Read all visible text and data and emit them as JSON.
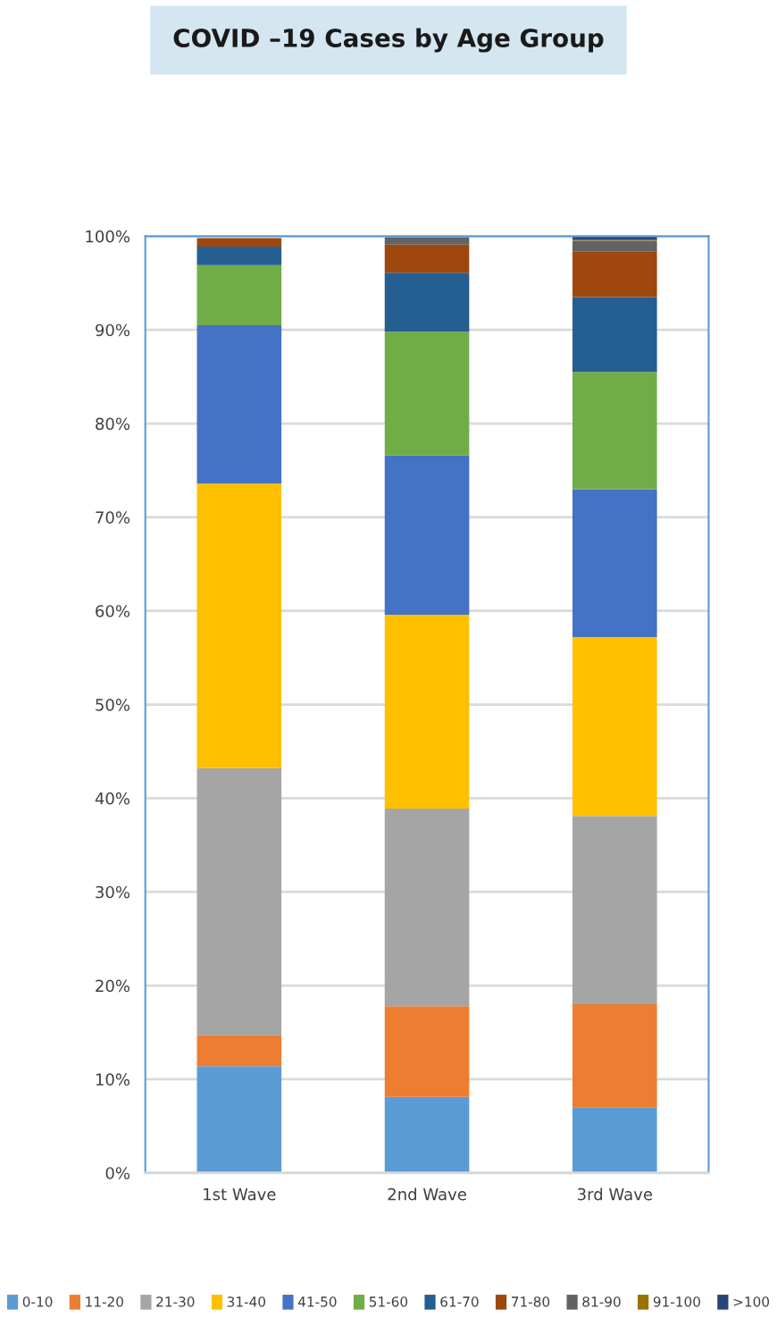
{
  "chart_data": {
    "type": "bar",
    "title": "COVID –19 Cases by Age Group",
    "stacked": true,
    "categories": [
      "1st Wave",
      "2nd Wave",
      "3rd Wave"
    ],
    "series": [
      {
        "name": "0-10",
        "color": "#5b9bd5",
        "values": [
          11.4,
          8.1,
          7.0
        ]
      },
      {
        "name": "11-20",
        "color": "#ed7d31",
        "values": [
          3.3,
          9.7,
          11.0
        ]
      },
      {
        "name": "21-30",
        "color": "#a5a5a5",
        "values": [
          28.5,
          21.1,
          20.1
        ]
      },
      {
        "name": "31-40",
        "color": "#ffc000",
        "values": [
          30.4,
          20.7,
          19.1
        ]
      },
      {
        "name": "41-50",
        "color": "#4472c4",
        "values": [
          16.9,
          17.0,
          15.8
        ]
      },
      {
        "name": "51-60",
        "color": "#70ad47",
        "values": [
          6.4,
          13.2,
          12.5
        ]
      },
      {
        "name": "61-70",
        "color": "#255e91",
        "values": [
          2.0,
          6.3,
          8.0
        ]
      },
      {
        "name": "71-80",
        "color": "#9e480e",
        "values": [
          0.9,
          3.0,
          4.9
        ]
      },
      {
        "name": "81-90",
        "color": "#636363",
        "values": [
          null,
          0.8,
          1.1
        ]
      },
      {
        "name": "91-100",
        "color": "#997300",
        "values": [
          0,
          null,
          0.1
        ]
      },
      {
        "name": ">100",
        "color": "#264478",
        "values": [
          0,
          0,
          0.4
        ]
      }
    ],
    "ylim": [
      0,
      100
    ],
    "yticks": [
      {
        "value": 0,
        "label": "0%"
      },
      {
        "value": 10,
        "label": "10%"
      },
      {
        "value": 20,
        "label": "20%"
      },
      {
        "value": 30,
        "label": "30%"
      },
      {
        "value": 40,
        "label": "40%"
      },
      {
        "value": 50,
        "label": "50%"
      },
      {
        "value": 60,
        "label": "60%"
      },
      {
        "value": 70,
        "label": "70%"
      },
      {
        "value": 80,
        "label": "80%"
      },
      {
        "value": 90,
        "label": "90%"
      },
      {
        "value": 100,
        "label": "100%"
      }
    ],
    "grid": "y",
    "legend": "bottom"
  }
}
